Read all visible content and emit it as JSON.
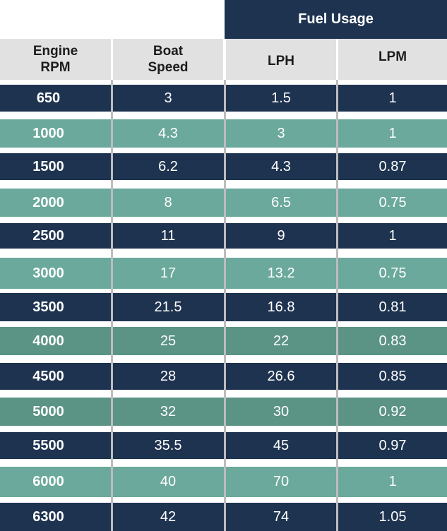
{
  "table": {
    "group_header": "Fuel Usage",
    "columns": [
      {
        "line1": "Engine",
        "line2": "RPM"
      },
      {
        "line1": "Boat",
        "line2": "Speed"
      },
      {
        "line1": "LPH",
        "line2": ""
      },
      {
        "line1": "LPM",
        "line2": ""
      }
    ],
    "rows": [
      [
        "650",
        "3",
        "1.5",
        "1"
      ],
      [
        "1000",
        "4.3",
        "3",
        "1"
      ],
      [
        "1500",
        "6.2",
        "4.3",
        "0.87"
      ],
      [
        "2000",
        "8",
        "6.5",
        "0.75"
      ],
      [
        "2500",
        "11",
        "9",
        "1"
      ],
      [
        "3000",
        "17",
        "13.2",
        "0.75"
      ],
      [
        "3500",
        "21.5",
        "16.8",
        "0.81"
      ],
      [
        "4000",
        "25",
        "22",
        "0.83"
      ],
      [
        "4500",
        "28",
        "26.6",
        "0.85"
      ],
      [
        "5000",
        "32",
        "30",
        "0.92"
      ],
      [
        "5500",
        "35.5",
        "45",
        "0.97"
      ],
      [
        "6000",
        "40",
        "70",
        "1"
      ],
      [
        "6300",
        "42",
        "74",
        "1.05"
      ]
    ]
  },
  "colors": {
    "navy": "#1e3350",
    "teal": "#6aa99b",
    "teal_dark": "#5b9385",
    "header_gray": "#e1e1e1"
  }
}
